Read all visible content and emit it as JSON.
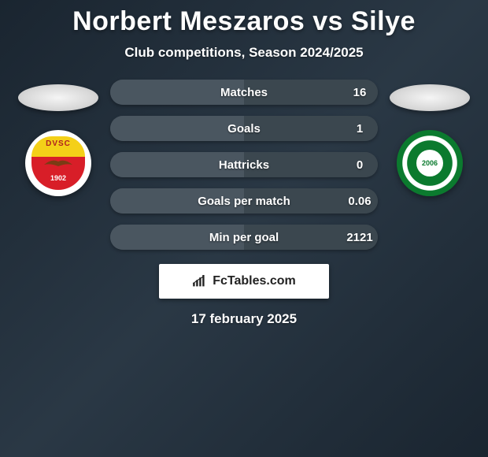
{
  "header": {
    "title": "Norbert Meszaros vs Silye",
    "subtitle": "Club competitions, Season 2024/2025"
  },
  "players": {
    "left": {
      "name": "Norbert Meszaros",
      "club_badge": {
        "label_top": "DVSC",
        "year": "1902",
        "primary_color": "#d81e28",
        "secondary_color": "#f4d018"
      }
    },
    "right": {
      "name": "Silye",
      "club_badge": {
        "year": "2006",
        "primary_color": "#0b7a2e"
      }
    }
  },
  "stats": {
    "colors": {
      "left_half": "#4a5660",
      "right_half": "#3b474f",
      "text": "#ffffff"
    },
    "rows": [
      {
        "label": "Matches",
        "left": "",
        "right": "16"
      },
      {
        "label": "Goals",
        "left": "",
        "right": "1"
      },
      {
        "label": "Hattricks",
        "left": "",
        "right": "0"
      },
      {
        "label": "Goals per match",
        "left": "",
        "right": "0.06"
      },
      {
        "label": "Min per goal",
        "left": "",
        "right": "2121"
      }
    ]
  },
  "watermark": {
    "text": "FcTables.com"
  },
  "footer": {
    "date": "17 february 2025"
  },
  "styling": {
    "bg_gradient_from": "#1a2530",
    "bg_gradient_mid": "#2a3845",
    "title_fontsize": 34,
    "subtitle_fontsize": 17,
    "stat_label_fontsize": 15,
    "stat_row_height": 32,
    "stat_row_radius": 16,
    "stat_row_gap": 14
  }
}
